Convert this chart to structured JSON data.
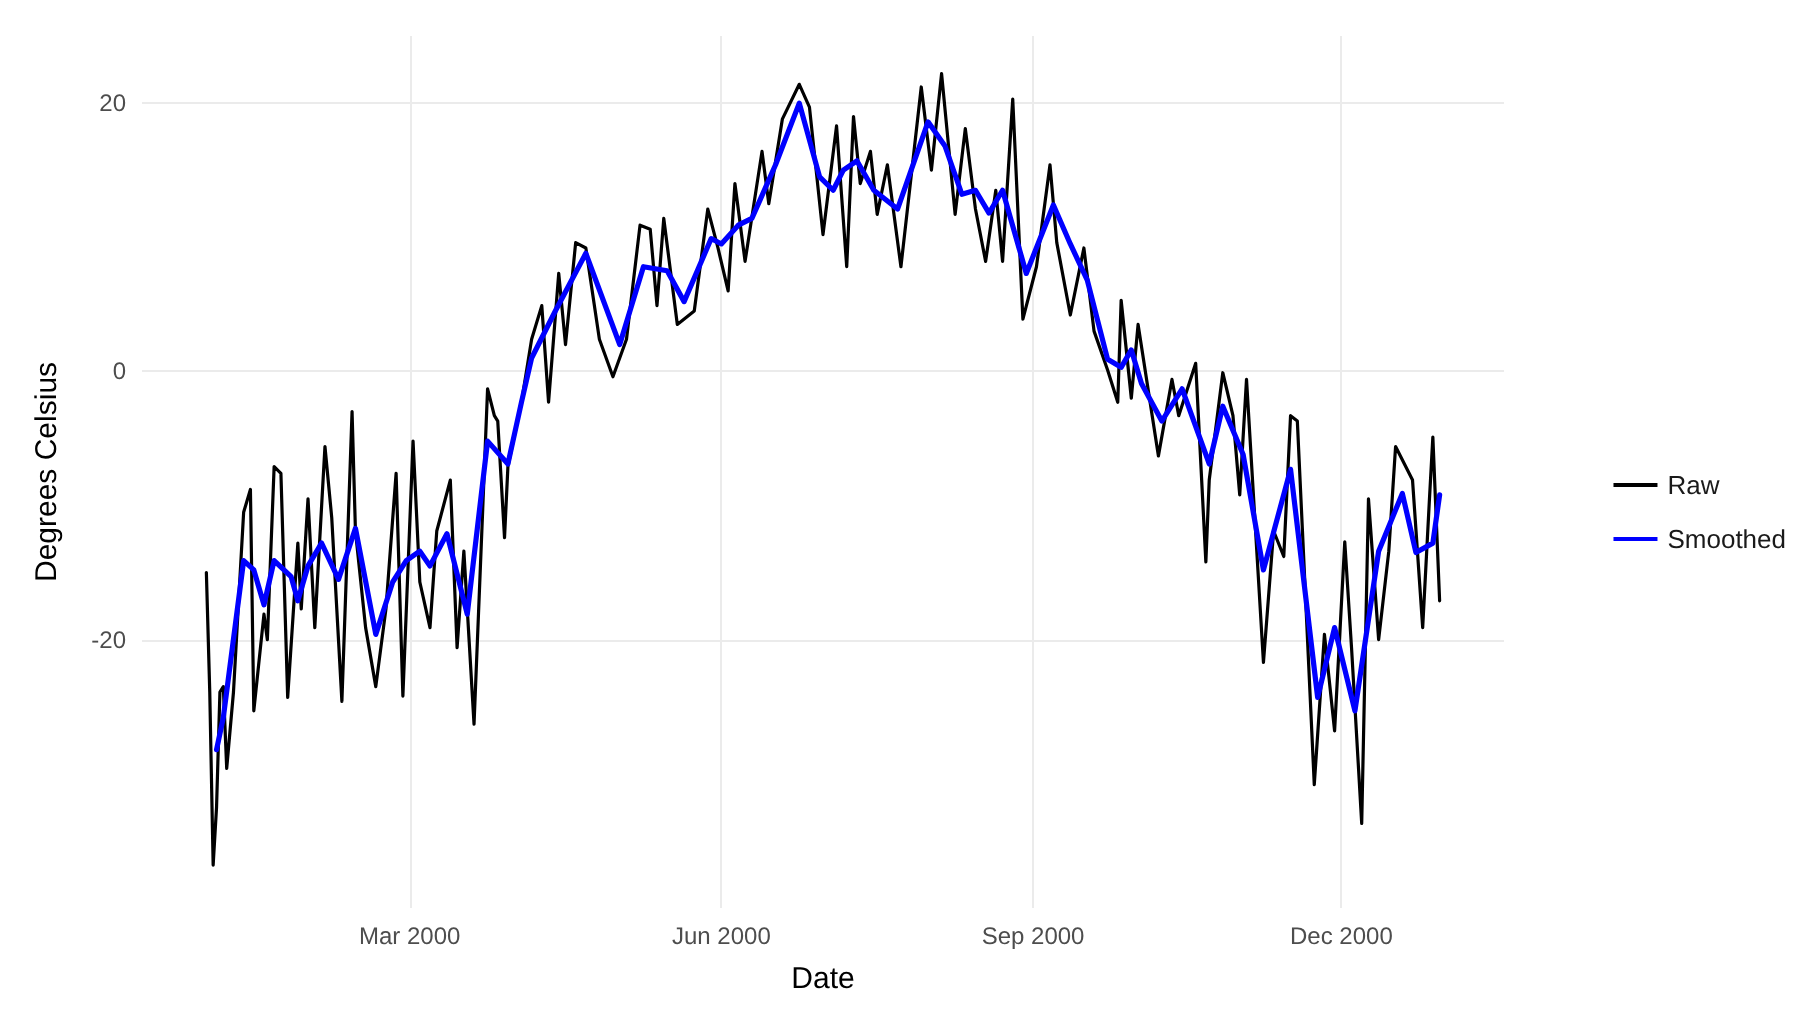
{
  "chart_data": {
    "type": "line",
    "xlabel": "Date",
    "ylabel": "Degrees Celsius",
    "xlim": [
      "1999-12-13",
      "2001-01-18"
    ],
    "xticks": [
      {
        "value": "2000-03-01",
        "label": "Mar 2000"
      },
      {
        "value": "2000-06-01",
        "label": "Jun 2000"
      },
      {
        "value": "2000-09-01",
        "label": "Sep 2000"
      },
      {
        "value": "2000-12-01",
        "label": "Dec 2000"
      }
    ],
    "ylim": [
      -40,
      25
    ],
    "yticks": [
      -20,
      0,
      20
    ],
    "grid": true,
    "legend": "right",
    "marker": "none",
    "line_style": "solid",
    "series": [
      {
        "name": "Raw",
        "color": "#000000",
        "x": [
          "2000-01-01",
          "2000-01-02",
          "2000-01-03",
          "2000-01-04",
          "2000-01-05",
          "2000-01-06",
          "2000-01-07",
          "2000-01-09",
          "2000-01-12",
          "2000-01-14",
          "2000-01-15",
          "2000-01-18",
          "2000-01-19",
          "2000-01-21",
          "2000-01-23",
          "2000-01-25",
          "2000-01-28",
          "2000-01-29",
          "2000-01-31",
          "2000-02-02",
          "2000-02-05",
          "2000-02-07",
          "2000-02-10",
          "2000-02-13",
          "2000-02-14",
          "2000-02-17",
          "2000-02-20",
          "2000-02-23",
          "2000-02-26",
          "2000-02-28",
          "2000-03-02",
          "2000-03-04",
          "2000-03-07",
          "2000-03-09",
          "2000-03-13",
          "2000-03-15",
          "2000-03-17",
          "2000-03-20",
          "2000-03-24",
          "2000-03-26",
          "2000-03-27",
          "2000-03-29",
          "2000-03-30",
          "2000-04-03",
          "2000-04-06",
          "2000-04-09",
          "2000-04-11",
          "2000-04-14",
          "2000-04-16",
          "2000-04-19",
          "2000-04-22",
          "2000-04-26",
          "2000-04-30",
          "2000-05-04",
          "2000-05-08",
          "2000-05-11",
          "2000-05-13",
          "2000-05-15",
          "2000-05-19",
          "2000-05-24",
          "2000-05-28",
          "2000-05-31",
          "2000-06-03",
          "2000-06-05",
          "2000-06-08",
          "2000-06-13",
          "2000-06-15",
          "2000-06-19",
          "2000-06-24",
          "2000-06-27",
          "2000-07-01",
          "2000-07-05",
          "2000-07-08",
          "2000-07-10",
          "2000-07-12",
          "2000-07-15",
          "2000-07-17",
          "2000-07-20",
          "2000-07-24",
          "2000-07-30",
          "2000-08-02",
          "2000-08-05",
          "2000-08-09",
          "2000-08-12",
          "2000-08-15",
          "2000-08-18",
          "2000-08-21",
          "2000-08-23",
          "2000-08-26",
          "2000-08-29",
          "2000-09-02",
          "2000-09-06",
          "2000-09-08",
          "2000-09-12",
          "2000-09-16",
          "2000-09-19",
          "2000-09-23",
          "2000-09-26",
          "2000-09-27",
          "2000-09-30",
          "2000-10-02",
          "2000-10-08",
          "2000-10-12",
          "2000-10-14",
          "2000-10-19",
          "2000-10-22",
          "2000-10-23",
          "2000-10-27",
          "2000-10-30",
          "2000-11-01",
          "2000-11-03",
          "2000-11-08",
          "2000-11-11",
          "2000-11-14",
          "2000-11-16",
          "2000-11-18",
          "2000-11-23",
          "2000-11-26",
          "2000-11-29",
          "2000-12-02",
          "2000-12-04",
          "2000-12-07",
          "2000-12-09",
          "2000-12-12",
          "2000-12-15",
          "2000-12-17",
          "2000-12-22",
          "2000-12-25",
          "2000-12-27",
          "2000-12-28",
          "2000-12-30"
        ],
        "values": [
          -15,
          -23.9,
          -36.8,
          -32.5,
          -23.9,
          -23.5,
          -29.6,
          -23.9,
          -10.5,
          -8.8,
          -25.3,
          -18.1,
          -20,
          -7.1,
          -7.6,
          -24.3,
          -12.8,
          -17.7,
          -9.5,
          -19.1,
          -5.6,
          -10.9,
          -24.6,
          -3,
          -11.9,
          -19.1,
          -23.5,
          -17.7,
          -7.6,
          -24.2,
          -5.2,
          -15.7,
          -19.1,
          -11.9,
          -8.1,
          -20.6,
          -13.4,
          -26.3,
          -1.3,
          -3.3,
          -3.7,
          -12.4,
          -7.1,
          -2.3,
          2.4,
          4.9,
          -2.3,
          7.3,
          2,
          9.6,
          9.2,
          2.4,
          -0.4,
          2.4,
          10.9,
          10.6,
          4.9,
          11.4,
          3.5,
          4.5,
          12.1,
          9.2,
          6,
          14,
          8.2,
          16.4,
          12.5,
          18.8,
          21.4,
          19.7,
          10.2,
          18.3,
          7.8,
          19,
          14,
          16.4,
          11.7,
          15.4,
          7.8,
          21.2,
          15,
          22.2,
          11.7,
          18.1,
          12.1,
          8.2,
          13.5,
          8.2,
          20.3,
          3.9,
          7.8,
          15.4,
          9.6,
          4.2,
          9.2,
          3,
          0.1,
          -2.3,
          5.3,
          -2,
          3.5,
          -6.3,
          -0.6,
          -3.3,
          0.6,
          -14.2,
          -8.1,
          -0.1,
          -3.3,
          -9.2,
          -0.6,
          -21.7,
          -11.9,
          -13.8,
          -3.3,
          -3.7,
          -30.8,
          -19.6,
          -26.8,
          -12.7,
          -20.6,
          -33.7,
          -9.5,
          -20,
          -13.4,
          -5.6,
          -8.1,
          -19.1,
          -9.5,
          -4.9,
          -17.1
        ]
      },
      {
        "name": "Smoothed",
        "color": "#0000ff",
        "x": [
          "2000-01-04",
          "2000-01-06",
          "2000-01-12",
          "2000-01-15",
          "2000-01-18",
          "2000-01-21",
          "2000-01-26",
          "2000-01-28",
          "2000-01-31",
          "2000-02-04",
          "2000-02-09",
          "2000-02-14",
          "2000-02-20",
          "2000-02-25",
          "2000-02-29",
          "2000-03-04",
          "2000-03-07",
          "2000-03-12",
          "2000-03-18",
          "2000-03-24",
          "2000-03-30",
          "2000-04-03",
          "2000-04-06",
          "2000-04-13",
          "2000-04-22",
          "2000-05-02",
          "2000-05-09",
          "2000-05-16",
          "2000-05-21",
          "2000-05-29",
          "2000-06-01",
          "2000-06-06",
          "2000-06-10",
          "2000-06-17",
          "2000-06-24",
          "2000-06-30",
          "2000-07-04",
          "2000-07-07",
          "2000-07-11",
          "2000-07-16",
          "2000-07-23",
          "2000-08-01",
          "2000-08-06",
          "2000-08-11",
          "2000-08-15",
          "2000-08-19",
          "2000-08-23",
          "2000-08-30",
          "2000-09-07",
          "2000-09-12",
          "2000-09-17",
          "2000-09-23",
          "2000-09-27",
          "2000-09-30",
          "2000-10-03",
          "2000-10-09",
          "2000-10-15",
          "2000-10-23",
          "2000-10-27",
          "2000-11-02",
          "2000-11-08",
          "2000-11-16",
          "2000-11-24",
          "2000-11-29",
          "2000-12-05",
          "2000-12-12",
          "2000-12-19",
          "2000-12-23",
          "2000-12-28",
          "2000-12-30"
        ],
        "values": [
          -28.2,
          -25.8,
          -14.1,
          -14.8,
          -17.4,
          -14.1,
          -15.3,
          -17.1,
          -14.5,
          -12.8,
          -15.5,
          -11.7,
          -19.6,
          -15.7,
          -14.1,
          -13.4,
          -14.5,
          -12.1,
          -18.1,
          -5.2,
          -6.9,
          -2.3,
          1,
          4.5,
          8.8,
          2,
          7.8,
          7.5,
          5.2,
          9.9,
          9.5,
          10.9,
          11.4,
          15.4,
          20,
          14.5,
          13.5,
          15,
          15.7,
          13.5,
          12.1,
          18.6,
          16.8,
          13.2,
          13.5,
          11.8,
          13.5,
          7.3,
          12.4,
          9.5,
          6.8,
          0.9,
          0.3,
          1.6,
          -0.9,
          -3.7,
          -1.3,
          -6.9,
          -2.6,
          -6.2,
          -14.8,
          -7.3,
          -24.3,
          -19.1,
          -25.3,
          -13.4,
          -9.1,
          -13.5,
          -12.8,
          -9.2
        ]
      }
    ]
  }
}
